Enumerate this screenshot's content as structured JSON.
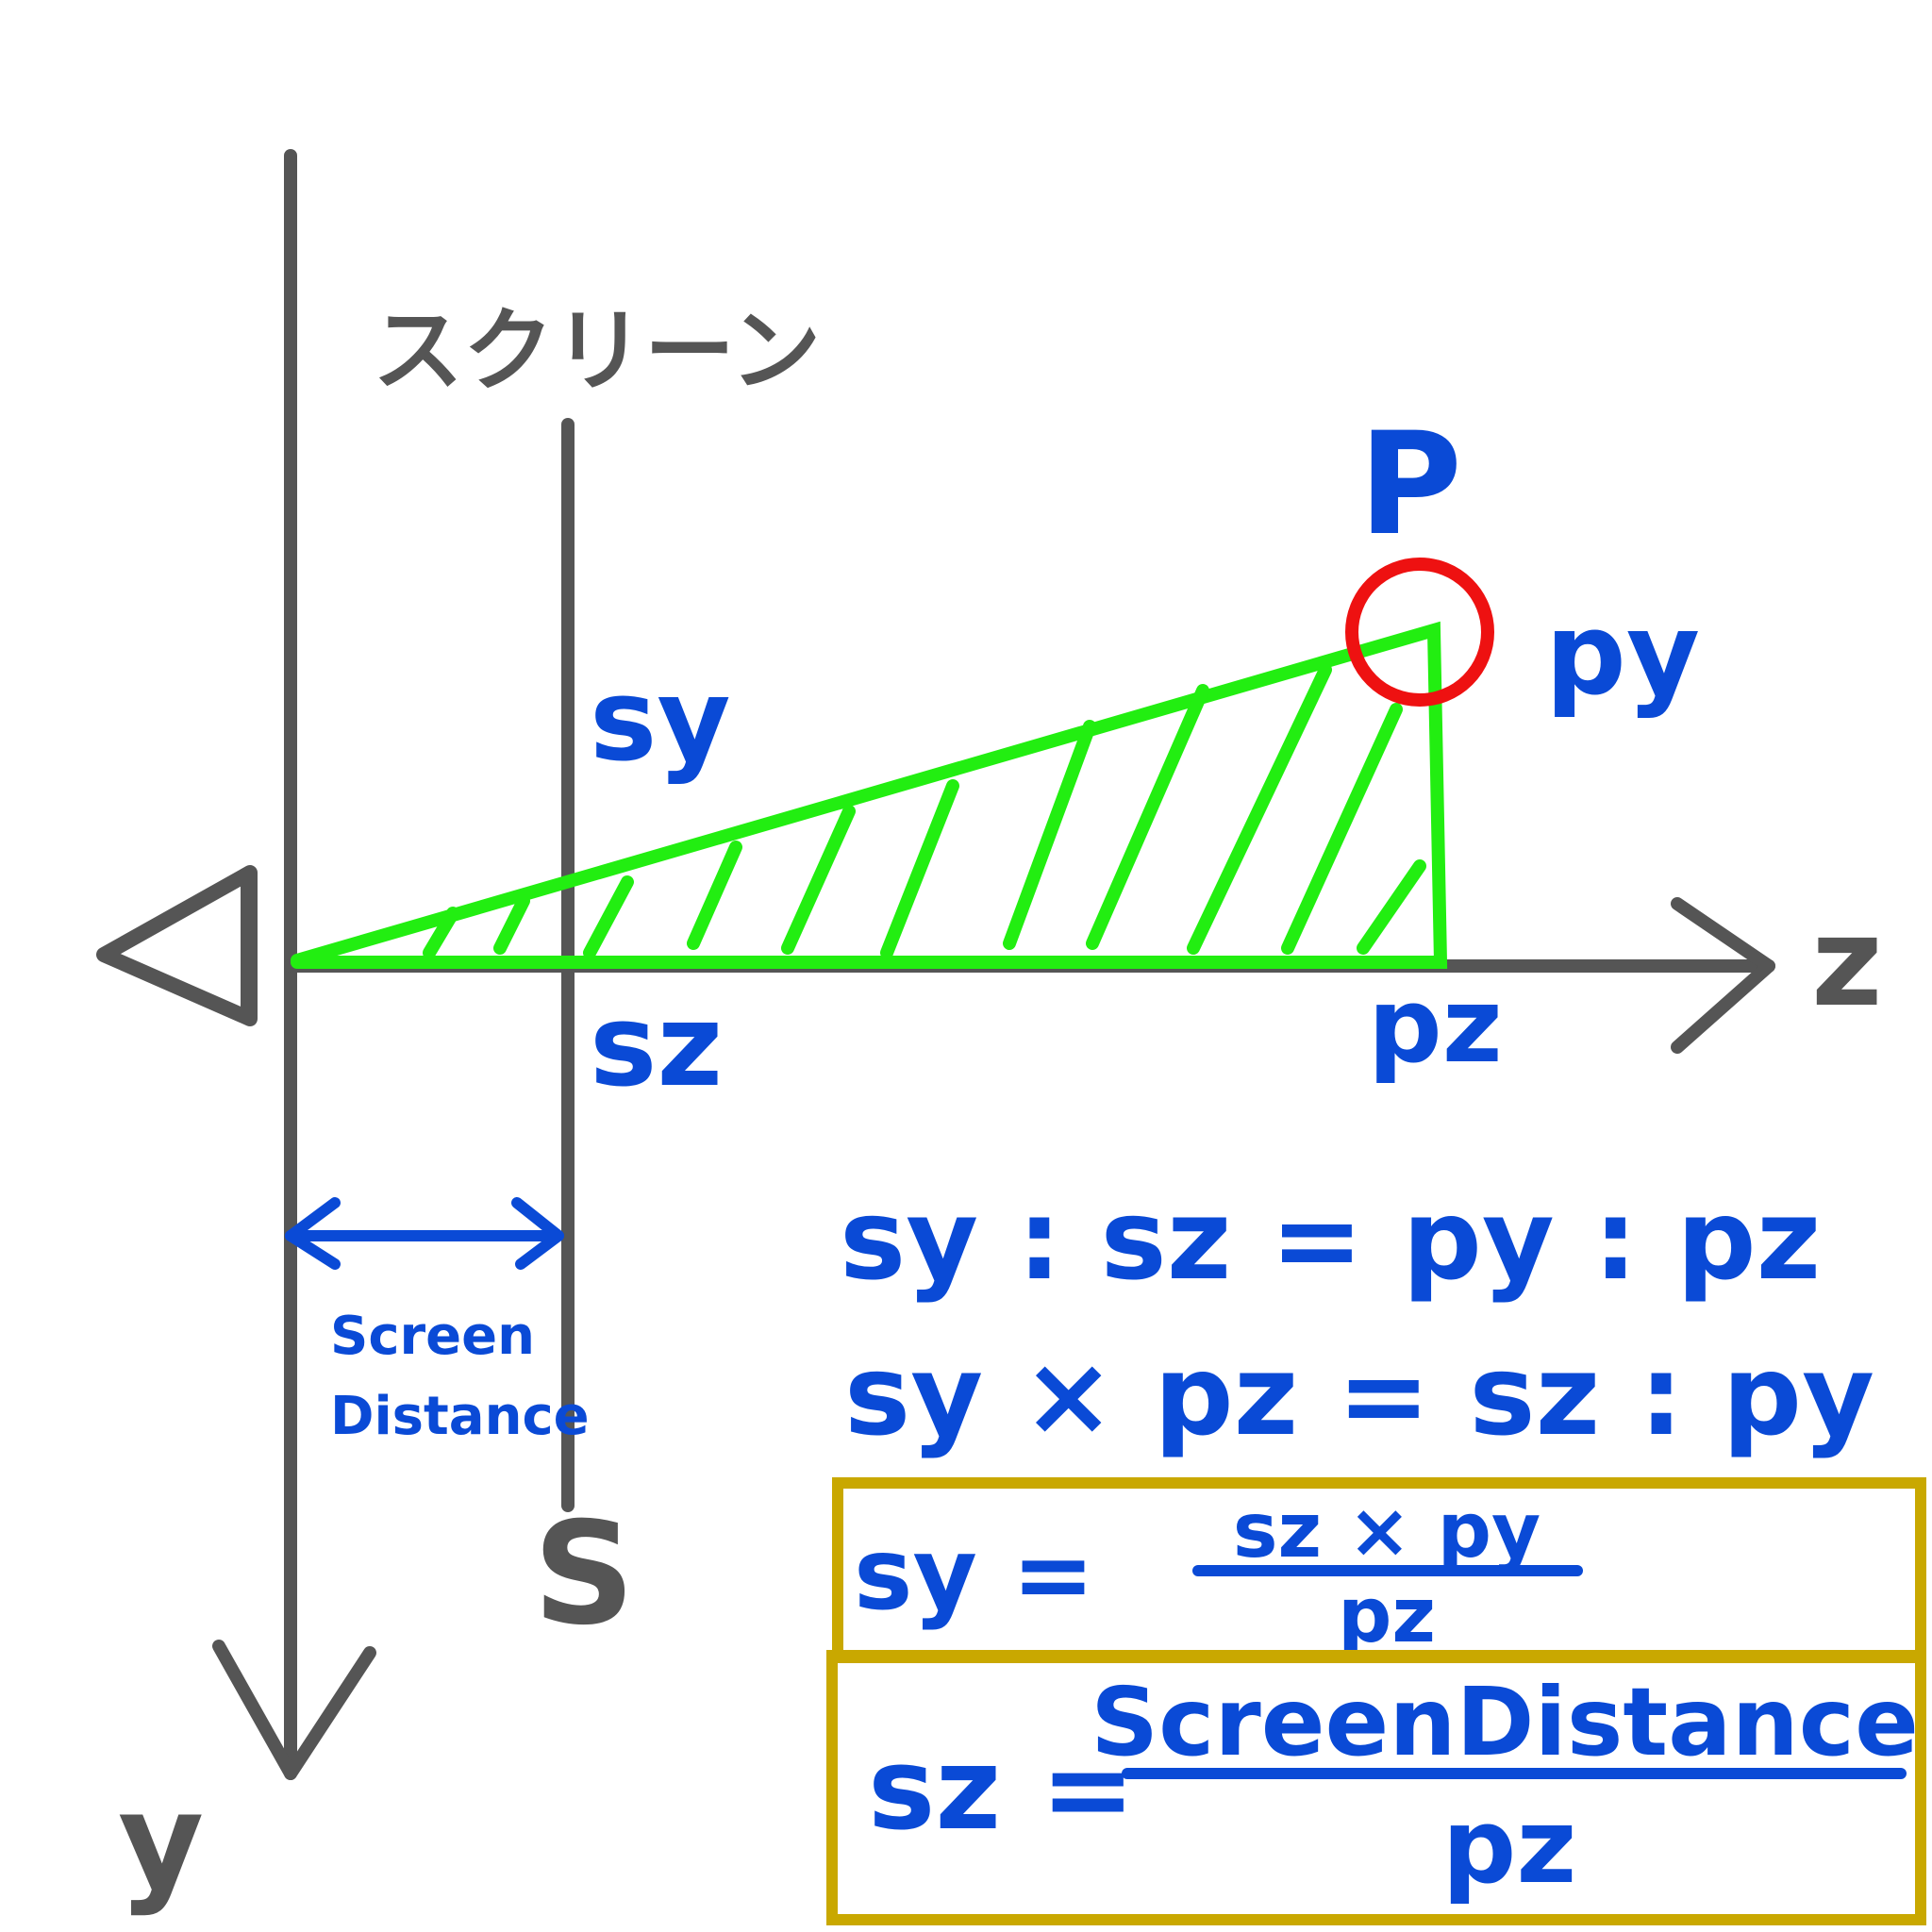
{
  "labels": {
    "screen_katakana": "スクリーン",
    "point_p": "P",
    "py": "py",
    "sy": "sy",
    "sz": "sz",
    "pz": "pz",
    "axis_z": "z",
    "axis_y": "y",
    "screen_s": "S",
    "screen_distance_line1": "Screen",
    "screen_distance_line2": "Distance"
  },
  "equations": {
    "eq1": "sy : sz = py : pz",
    "eq2": "sy × pz = sz : py",
    "boxed1_lhs": "sy =",
    "boxed1_num": "sz × py",
    "boxed1_den": "pz",
    "boxed2_lhs": "sz =",
    "boxed2_num": "ScreenDistance",
    "boxed2_den": "pz"
  },
  "colors": {
    "axis": "#555555",
    "triangle": "#22ee11",
    "point_circle": "#ee1111",
    "label_blue": "#0a4ad6",
    "box_border": "#c9a800"
  }
}
